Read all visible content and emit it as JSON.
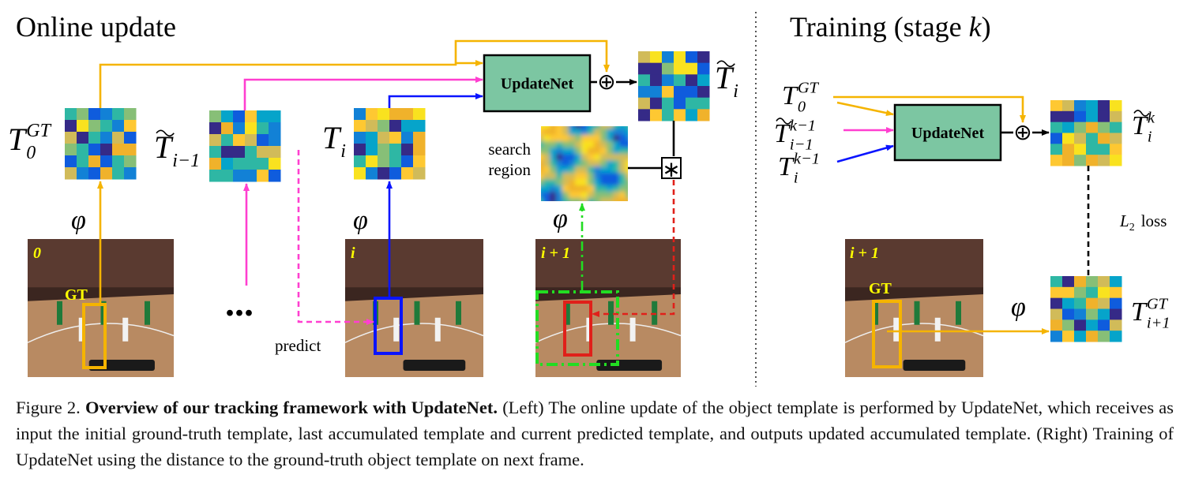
{
  "left_title": "Online update",
  "right_title": {
    "prefix": "Training (stage",
    "variable": "k",
    "suffix": ")"
  },
  "modules": [
    "UpdateNet",
    "UpdateNet"
  ],
  "templates": [
    {
      "base": "T",
      "sub": "0",
      "sup": "GT",
      "tilde": false
    },
    {
      "base": "T",
      "sub": "i−1",
      "sup": null,
      "tilde": true
    },
    {
      "base": "T",
      "sub": "i",
      "sup": null,
      "tilde": false
    },
    {
      "base": "T",
      "sub": "i",
      "sup": null,
      "tilde": true
    },
    {
      "base": "T",
      "sub": "0",
      "sup": "GT",
      "tilde": false
    },
    {
      "base": "T",
      "sub": "i−1",
      "sup": "k−1",
      "tilde": true
    },
    {
      "base": "T",
      "sub": "i",
      "sup": "k−1",
      "tilde": false
    },
    {
      "base": "T",
      "sub": "i",
      "sup": "k",
      "tilde": true
    },
    {
      "base": "T",
      "sub": "i+1",
      "sup": "GT",
      "tilde": false
    }
  ],
  "search_region_label": [
    "search",
    "region"
  ],
  "predict_label": "predict",
  "feature_extractor": "φ",
  "ellipsis": "...",
  "frame_labels": [
    "0",
    "i",
    "i + 1",
    "i + 1"
  ],
  "gt_labels": [
    "GT",
    "GT"
  ],
  "loss_label": {
    "base": "L",
    "sub": "2",
    "text": "loss"
  },
  "operators": {
    "sum": "⊕",
    "correlation": "∗"
  },
  "caption": {
    "label": "Figure 2.",
    "title": "Overview of our tracking framework with UpdateNet.",
    "text": "(Left) The online update of the object template is performed by UpdateNet, which receives as input the initial ground-truth template, last accumulated template and current predicted template, and outputs updated accumulated template. (Right) Training of UpdateNet using the distance to the ground-truth object template on next frame."
  }
}
